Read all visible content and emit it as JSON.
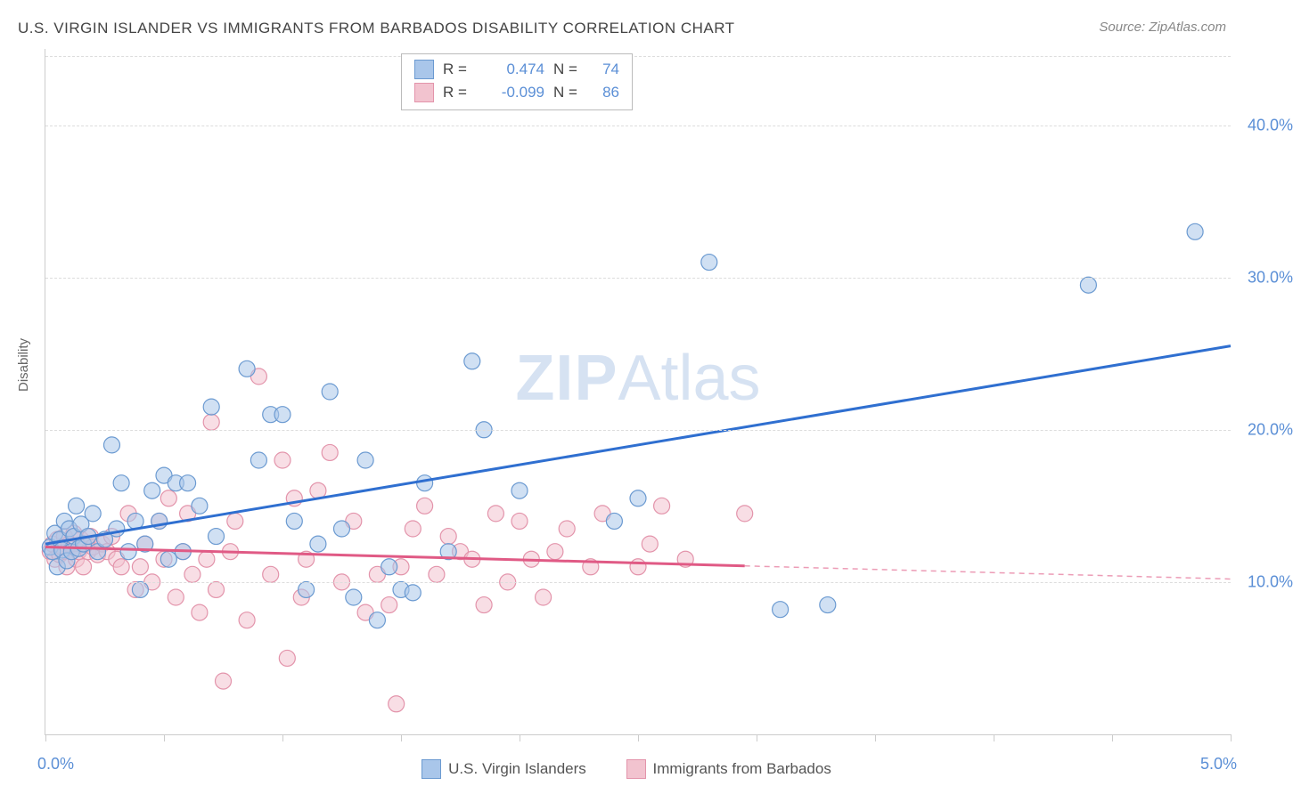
{
  "title": "U.S. VIRGIN ISLANDER VS IMMIGRANTS FROM BARBADOS DISABILITY CORRELATION CHART",
  "source_prefix": "Source: ",
  "source_name": "ZipAtlas.com",
  "watermark_zip": "ZIP",
  "watermark_atlas": "Atlas",
  "yaxis_title": "Disability",
  "chart": {
    "type": "scatter-correlation",
    "background_color": "#ffffff",
    "grid_color": "#dddddd",
    "axis_color": "#cccccc",
    "tick_color": "#cccccc",
    "label_color": "#5b8fd6",
    "xlim": [
      0.0,
      5.0
    ],
    "ylim": [
      0.0,
      45.0
    ],
    "x_ticks": [
      0.0,
      0.5,
      1.0,
      1.5,
      2.0,
      2.5,
      3.0,
      3.5,
      4.0,
      4.5,
      5.0
    ],
    "x_tick_labels": {
      "0": "0.0%",
      "5": "5.0%"
    },
    "y_gridlines": [
      10.0,
      20.0,
      30.0,
      40.0
    ],
    "y_tick_labels": {
      "10": "10.0%",
      "20": "20.0%",
      "30": "30.0%",
      "40": "40.0%"
    },
    "title_fontsize": 17,
    "label_fontsize": 18,
    "marker_radius": 9,
    "marker_opacity": 0.55,
    "marker_stroke_width": 1.2,
    "line_width": 3,
    "dash_pattern": "6,5",
    "series": [
      {
        "name": "U.S. Virgin Islanders",
        "fill": "#a9c6ea",
        "stroke": "#6b9ad1",
        "line_color": "#2f6fd0",
        "R_label": "R =",
        "R": "0.474",
        "N_label": "N =",
        "N": "74",
        "trend": {
          "x1": 0.0,
          "y1": 12.5,
          "x2": 5.0,
          "y2": 25.5,
          "solid_until_x": 5.0
        },
        "points": [
          [
            0.02,
            12.3
          ],
          [
            0.03,
            12.0
          ],
          [
            0.04,
            13.2
          ],
          [
            0.05,
            11.0
          ],
          [
            0.06,
            12.8
          ],
          [
            0.07,
            12.1
          ],
          [
            0.08,
            14.0
          ],
          [
            0.09,
            11.4
          ],
          [
            0.1,
            13.5
          ],
          [
            0.11,
            12.0
          ],
          [
            0.12,
            13.0
          ],
          [
            0.13,
            15.0
          ],
          [
            0.14,
            12.2
          ],
          [
            0.15,
            13.8
          ],
          [
            0.16,
            12.5
          ],
          [
            0.18,
            13.0
          ],
          [
            0.2,
            14.5
          ],
          [
            0.22,
            12.0
          ],
          [
            0.25,
            12.8
          ],
          [
            0.28,
            19.0
          ],
          [
            0.3,
            13.5
          ],
          [
            0.32,
            16.5
          ],
          [
            0.35,
            12.0
          ],
          [
            0.38,
            14.0
          ],
          [
            0.4,
            9.5
          ],
          [
            0.42,
            12.5
          ],
          [
            0.45,
            16.0
          ],
          [
            0.48,
            14.0
          ],
          [
            0.5,
            17.0
          ],
          [
            0.52,
            11.5
          ],
          [
            0.55,
            16.5
          ],
          [
            0.58,
            12.0
          ],
          [
            0.6,
            16.5
          ],
          [
            0.65,
            15.0
          ],
          [
            0.7,
            21.5
          ],
          [
            0.72,
            13.0
          ],
          [
            0.85,
            24.0
          ],
          [
            0.9,
            18.0
          ],
          [
            0.95,
            21.0
          ],
          [
            1.0,
            21.0
          ],
          [
            1.05,
            14.0
          ],
          [
            1.1,
            9.5
          ],
          [
            1.15,
            12.5
          ],
          [
            1.2,
            22.5
          ],
          [
            1.25,
            13.5
          ],
          [
            1.3,
            9.0
          ],
          [
            1.35,
            18.0
          ],
          [
            1.4,
            7.5
          ],
          [
            1.45,
            11.0
          ],
          [
            1.5,
            9.5
          ],
          [
            1.55,
            9.3
          ],
          [
            1.6,
            16.5
          ],
          [
            1.7,
            12.0
          ],
          [
            1.8,
            24.5
          ],
          [
            1.85,
            20.0
          ],
          [
            2.0,
            16.0
          ],
          [
            2.4,
            14.0
          ],
          [
            2.5,
            15.5
          ],
          [
            2.8,
            31.0
          ],
          [
            3.1,
            8.2
          ],
          [
            3.3,
            8.5
          ],
          [
            4.4,
            29.5
          ],
          [
            4.85,
            33.0
          ]
        ]
      },
      {
        "name": "Immigrants from Barbados",
        "fill": "#f2c3cf",
        "stroke": "#e394ab",
        "line_color": "#e05a85",
        "R_label": "R =",
        "R": "-0.099",
        "N_label": "N =",
        "N": "86",
        "trend": {
          "x1": 0.0,
          "y1": 12.3,
          "x2": 5.0,
          "y2": 10.2,
          "solid_until_x": 2.95
        },
        "points": [
          [
            0.02,
            12.0
          ],
          [
            0.03,
            12.5
          ],
          [
            0.04,
            11.5
          ],
          [
            0.05,
            12.8
          ],
          [
            0.06,
            11.8
          ],
          [
            0.07,
            12.3
          ],
          [
            0.08,
            13.0
          ],
          [
            0.09,
            11.0
          ],
          [
            0.1,
            12.5
          ],
          [
            0.11,
            12.0
          ],
          [
            0.12,
            13.2
          ],
          [
            0.13,
            11.5
          ],
          [
            0.14,
            12.0
          ],
          [
            0.15,
            12.8
          ],
          [
            0.16,
            11.0
          ],
          [
            0.17,
            12.5
          ],
          [
            0.18,
            12.0
          ],
          [
            0.19,
            13.0
          ],
          [
            0.2,
            12.3
          ],
          [
            0.22,
            11.8
          ],
          [
            0.24,
            12.5
          ],
          [
            0.26,
            12.0
          ],
          [
            0.28,
            13.0
          ],
          [
            0.3,
            11.5
          ],
          [
            0.32,
            11.0
          ],
          [
            0.35,
            14.5
          ],
          [
            0.38,
            9.5
          ],
          [
            0.4,
            11.0
          ],
          [
            0.42,
            12.5
          ],
          [
            0.45,
            10.0
          ],
          [
            0.48,
            14.0
          ],
          [
            0.5,
            11.5
          ],
          [
            0.52,
            15.5
          ],
          [
            0.55,
            9.0
          ],
          [
            0.58,
            12.0
          ],
          [
            0.6,
            14.5
          ],
          [
            0.62,
            10.5
          ],
          [
            0.65,
            8.0
          ],
          [
            0.68,
            11.5
          ],
          [
            0.7,
            20.5
          ],
          [
            0.72,
            9.5
          ],
          [
            0.75,
            3.5
          ],
          [
            0.78,
            12.0
          ],
          [
            0.8,
            14.0
          ],
          [
            0.85,
            7.5
          ],
          [
            0.9,
            23.5
          ],
          [
            0.95,
            10.5
          ],
          [
            1.0,
            18.0
          ],
          [
            1.02,
            5.0
          ],
          [
            1.05,
            15.5
          ],
          [
            1.08,
            9.0
          ],
          [
            1.1,
            11.5
          ],
          [
            1.15,
            16.0
          ],
          [
            1.2,
            18.5
          ],
          [
            1.25,
            10.0
          ],
          [
            1.3,
            14.0
          ],
          [
            1.35,
            8.0
          ],
          [
            1.4,
            10.5
          ],
          [
            1.45,
            8.5
          ],
          [
            1.48,
            2.0
          ],
          [
            1.5,
            11.0
          ],
          [
            1.55,
            13.5
          ],
          [
            1.6,
            15.0
          ],
          [
            1.65,
            10.5
          ],
          [
            1.7,
            13.0
          ],
          [
            1.75,
            12.0
          ],
          [
            1.8,
            11.5
          ],
          [
            1.85,
            8.5
          ],
          [
            1.9,
            14.5
          ],
          [
            1.95,
            10.0
          ],
          [
            2.0,
            14.0
          ],
          [
            2.05,
            11.5
          ],
          [
            2.1,
            9.0
          ],
          [
            2.15,
            12.0
          ],
          [
            2.2,
            13.5
          ],
          [
            2.3,
            11.0
          ],
          [
            2.35,
            14.5
          ],
          [
            2.5,
            11.0
          ],
          [
            2.55,
            12.5
          ],
          [
            2.6,
            15.0
          ],
          [
            2.7,
            11.5
          ],
          [
            2.95,
            14.5
          ]
        ]
      }
    ]
  }
}
